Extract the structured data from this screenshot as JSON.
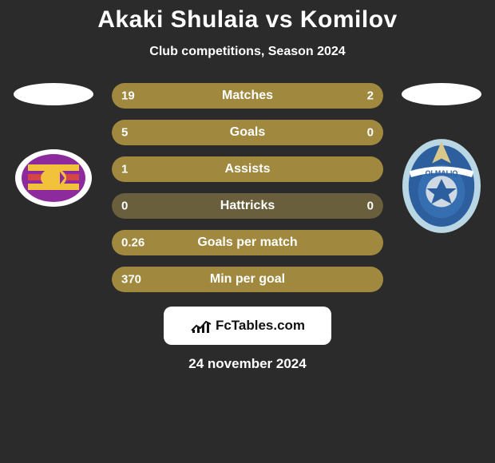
{
  "header": {
    "title": "Akaki Shulaia vs Komilov",
    "subtitle": "Club competitions, Season 2024"
  },
  "colors": {
    "bar_fill": "#a0893f",
    "bar_bg": "#6a5f3c",
    "background": "#2b2b2b",
    "text": "#ffffff",
    "badge_bg": "#ffffff",
    "badge_text": "#111111",
    "crest_left_primary": "#8d2b9e",
    "crest_left_secondary": "#f2c23b",
    "crest_left_stripe": "#d64545",
    "crest_right_primary": "#356fb2",
    "crest_right_secondary": "#b8d6e3",
    "crest_right_accent": "#2d5f9e"
  },
  "bars": [
    {
      "label": "Matches",
      "left": "19",
      "right": "2",
      "left_pct": 90,
      "right_pct": 10
    },
    {
      "label": "Goals",
      "left": "5",
      "right": "0",
      "left_pct": 100,
      "right_pct": 0
    },
    {
      "label": "Assists",
      "left": "1",
      "right": "",
      "left_pct": 100,
      "right_pct": 0
    },
    {
      "label": "Hattricks",
      "left": "0",
      "right": "0",
      "left_pct": 0,
      "right_pct": 0
    },
    {
      "label": "Goals per match",
      "left": "0.26",
      "right": "",
      "left_pct": 100,
      "right_pct": 0
    },
    {
      "label": "Min per goal",
      "left": "370",
      "right": "",
      "left_pct": 100,
      "right_pct": 0
    }
  ],
  "footer": {
    "brand": "FcTables.com",
    "date": "24 november 2024"
  }
}
